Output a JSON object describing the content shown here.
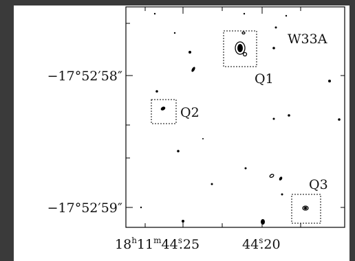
{
  "labels": {
    "source": "W33A",
    "q1": "Q1",
    "q2": "Q2",
    "q3": "Q3"
  },
  "y_axis": {
    "ticks": [
      "−17°52′58″",
      "−17°52′59″"
    ]
  },
  "x_axis": {
    "ticks": [
      [
        "18",
        "h",
        "11",
        "m",
        "44",
        "s",
        ".25"
      ],
      [
        "44",
        "s",
        ".20"
      ]
    ]
  }
}
